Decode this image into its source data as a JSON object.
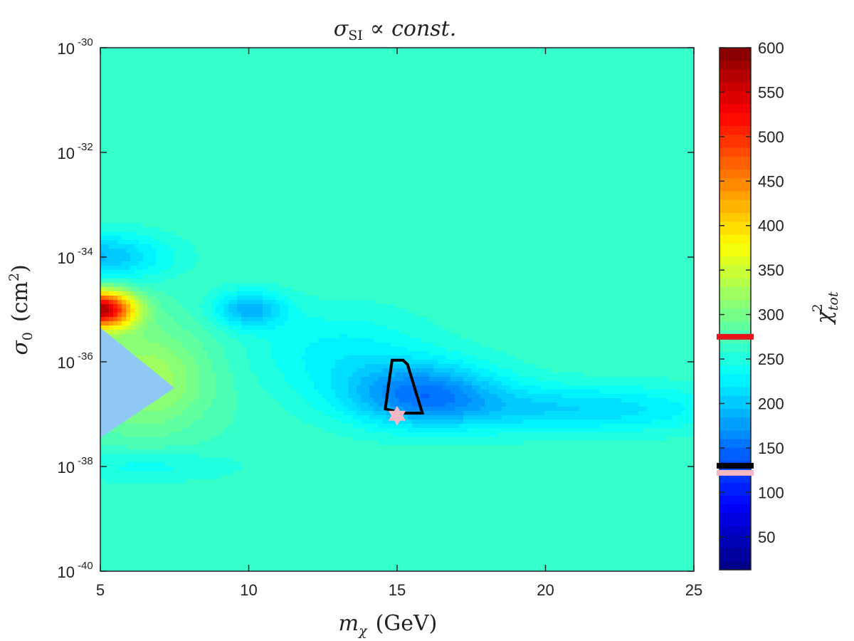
{
  "chart_data": {
    "type": "heatmap",
    "title": {
      "symbol": "σ",
      "subscript": "SI",
      "relation": "∝",
      "term": "const."
    },
    "xlabel": {
      "symbol": "m",
      "subscript": "χ",
      "unit": "(GeV)"
    },
    "ylabel": {
      "symbol": "σ",
      "subscript": "0",
      "unit_open": "(cm",
      "unit_power": "2",
      "unit_close": ")"
    },
    "colorbar_label": {
      "symbol": "χ",
      "superscript": "2",
      "subscript": "tot"
    },
    "xlim": [
      5,
      25
    ],
    "ylim_log10": [
      -40,
      -30
    ],
    "x_ticks": [
      "5",
      "10",
      "15",
      "20",
      "25"
    ],
    "y_ticks": [
      {
        "base": "10",
        "exp": "-30"
      },
      {
        "base": "10",
        "exp": "-32"
      },
      {
        "base": "10",
        "exp": "-34"
      },
      {
        "base": "10",
        "exp": "-36"
      },
      {
        "base": "10",
        "exp": "-38"
      },
      {
        "base": "10",
        "exp": "-40"
      }
    ],
    "colorbar_range": [
      13,
      600
    ],
    "colorbar_ticks": [
      "50",
      "100",
      "150",
      "200",
      "250",
      "300",
      "350",
      "400",
      "450",
      "500",
      "550",
      "600"
    ],
    "colorbar_markers": [
      {
        "value": 275,
        "color": "#e8141c"
      },
      {
        "value": 130,
        "color": "#000000"
      },
      {
        "value": 122,
        "color": "#f6b9c4"
      }
    ],
    "background_value": 265,
    "blobs": [
      {
        "x": 5.0,
        "log_sigma": -35.0,
        "sx": 1.1,
        "sy": 0.35,
        "amp": 305
      },
      {
        "x": 6.5,
        "log_sigma": -36.3,
        "sx": 2.2,
        "sy": 1.0,
        "amp": 65
      },
      {
        "x": 5.0,
        "log_sigma": -34.0,
        "sx": 2.2,
        "sy": 0.45,
        "amp": -70
      },
      {
        "x": 10.0,
        "log_sigma": -35.0,
        "sx": 1.2,
        "sy": 0.35,
        "amp": -75
      },
      {
        "x": 15.8,
        "log_sigma": -36.6,
        "sx": 2.6,
        "sy": 0.6,
        "amp": -100
      },
      {
        "x": 21.0,
        "log_sigma": -36.9,
        "sx": 5.0,
        "sy": 0.45,
        "amp": -55
      },
      {
        "x": 13.0,
        "log_sigma": -35.8,
        "sx": 3.0,
        "sy": 0.8,
        "amp": -35
      },
      {
        "x": 6.5,
        "log_sigma": -38.0,
        "sx": 3.0,
        "sy": 0.3,
        "amp": -25
      }
    ],
    "excluded_region": [
      {
        "x": 5.0,
        "log_sigma": -35.35
      },
      {
        "x": 7.5,
        "log_sigma": -36.5
      },
      {
        "x": 5.0,
        "log_sigma": -37.45
      }
    ],
    "excluded_color": "#8fc8f5",
    "contour": [
      {
        "x": 14.83,
        "log_sigma": -35.97
      },
      {
        "x": 15.2,
        "log_sigma": -35.97
      },
      {
        "x": 15.35,
        "log_sigma": -36.05
      },
      {
        "x": 15.85,
        "log_sigma": -36.98
      },
      {
        "x": 15.2,
        "log_sigma": -36.98
      },
      {
        "x": 14.6,
        "log_sigma": -36.9
      }
    ],
    "best_fit": {
      "x": 15.0,
      "log_sigma": -37.03,
      "color": "#f6b9c4"
    }
  }
}
